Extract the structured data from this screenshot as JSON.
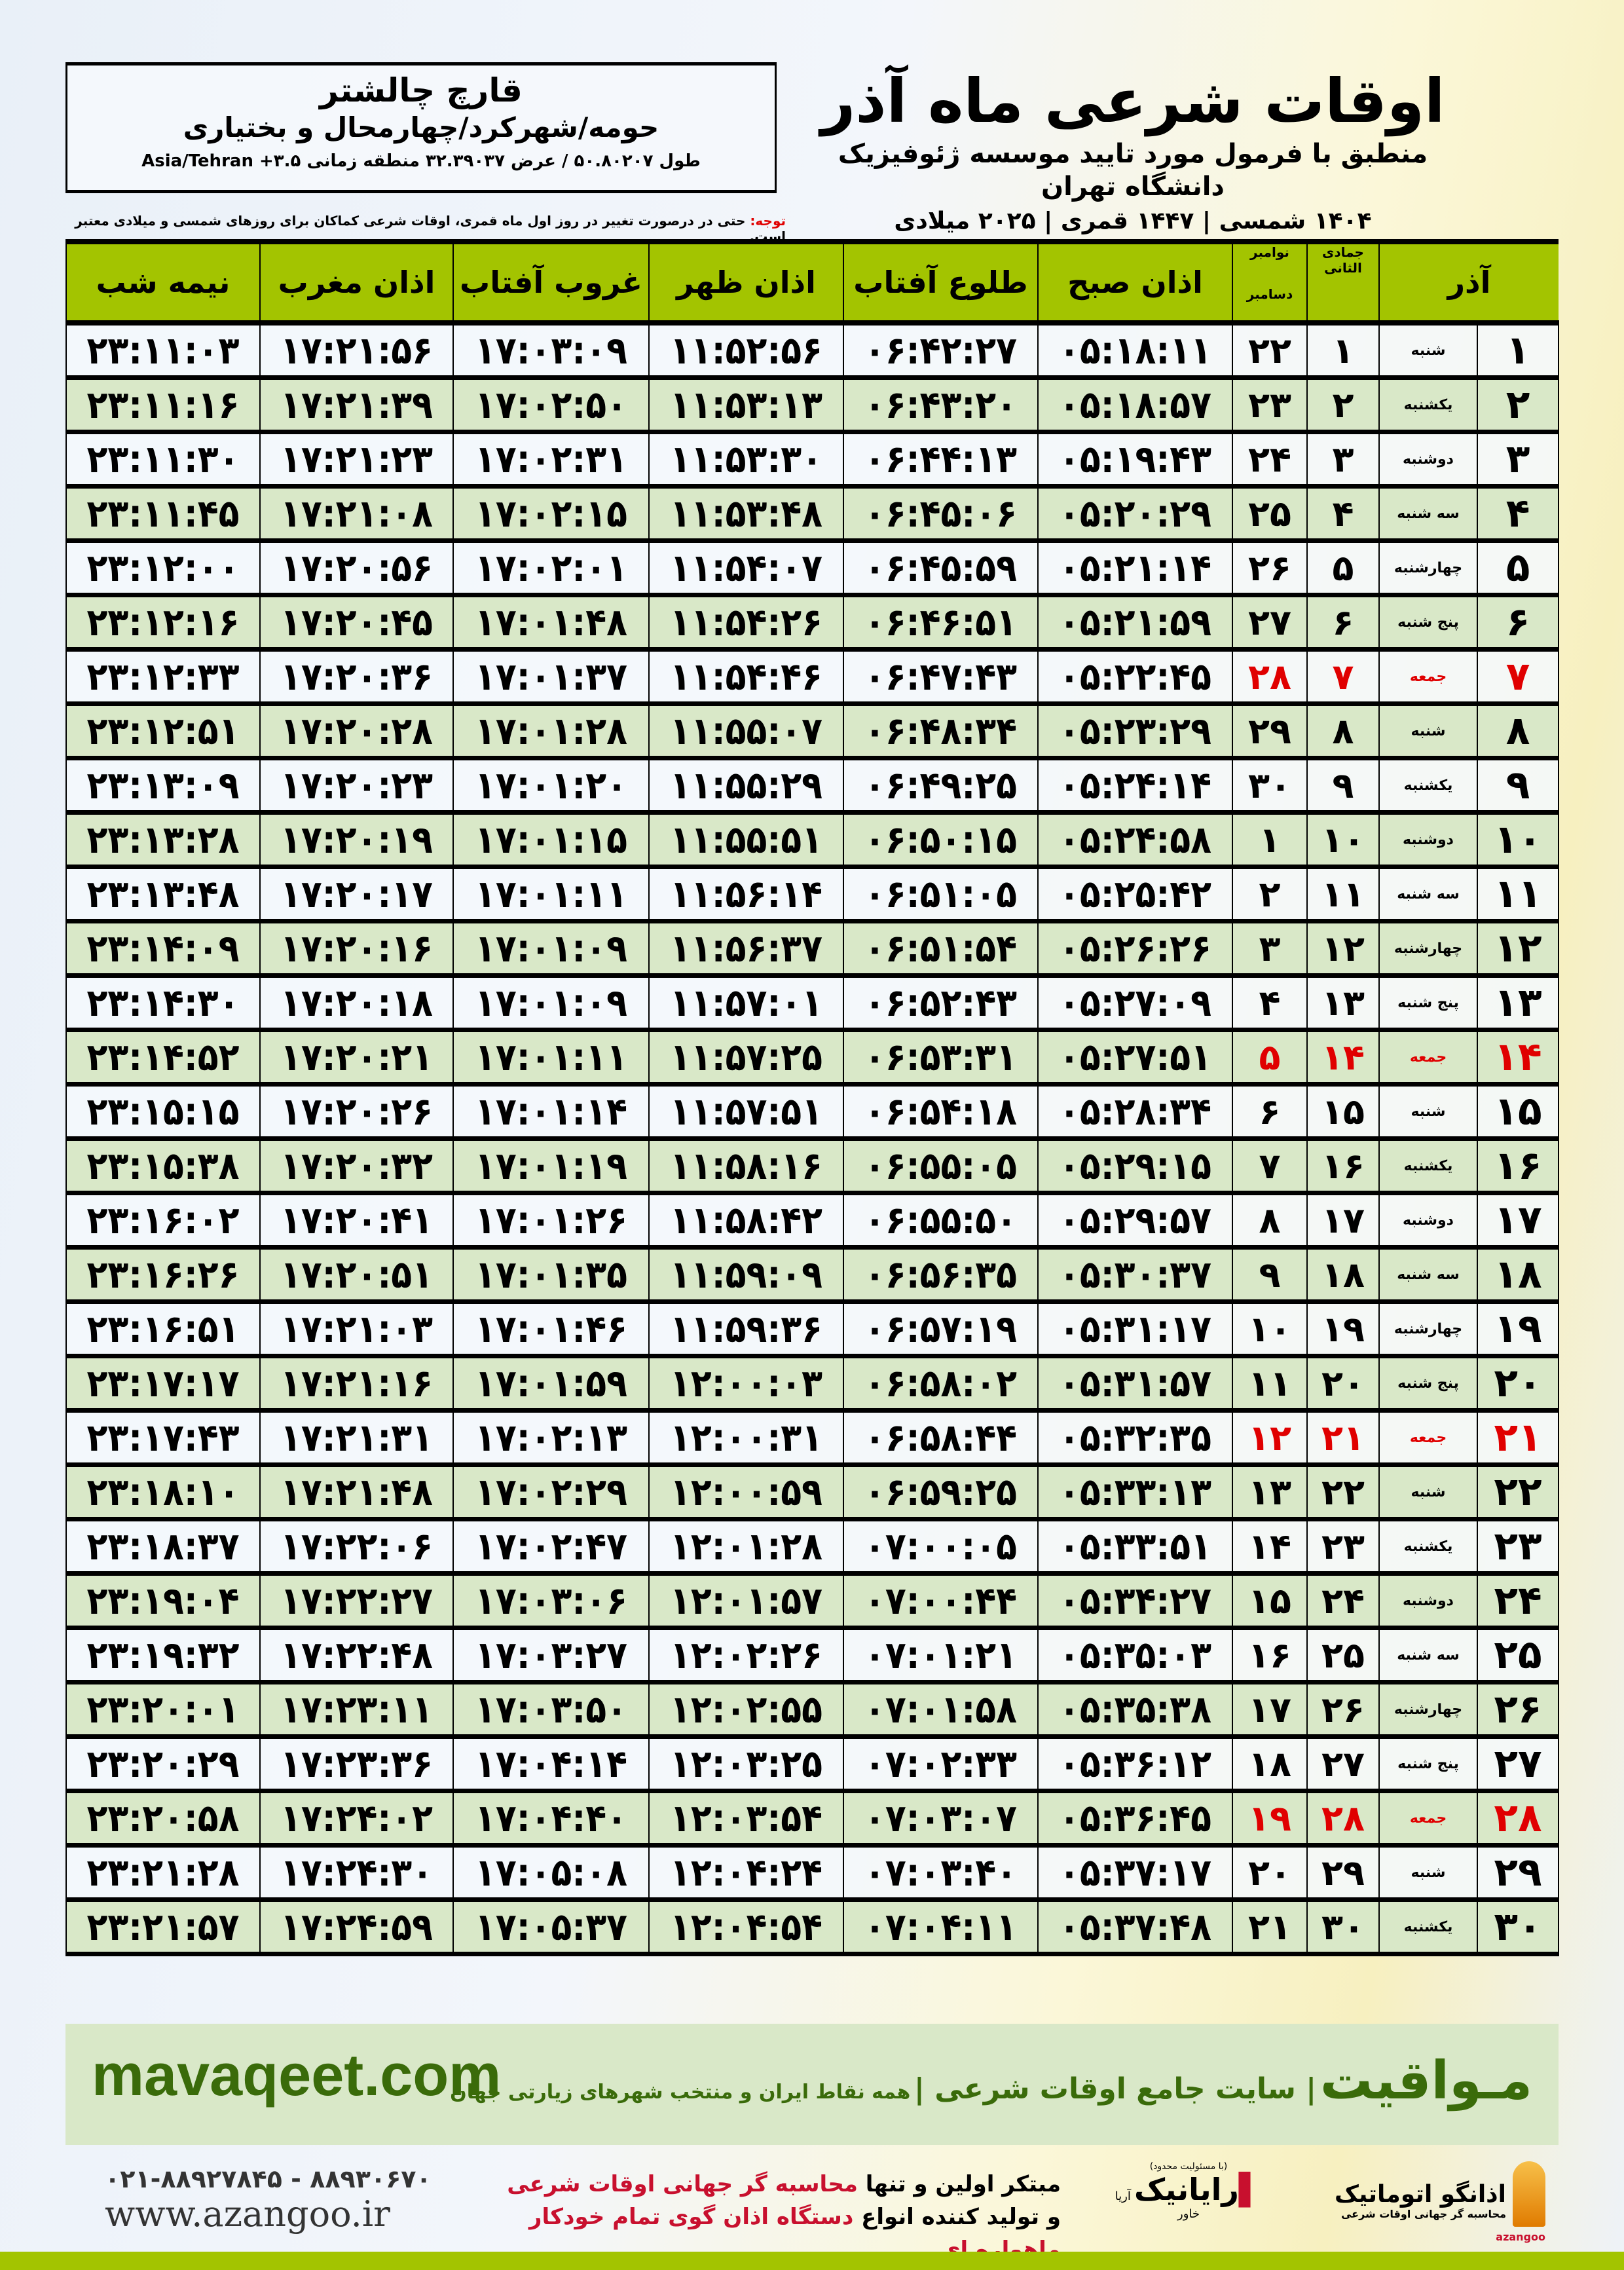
{
  "location": {
    "name": "قارچ چالشتر",
    "region": "حومه/شهرکرد/چهارمحال و بختیاری",
    "coords": "طول ۵۰.۸۰۲۰۷ / عرض ۳۲.۳۹۰۳۷ منطقه زمانی ۳.۵+ Asia/Tehran"
  },
  "header": {
    "title": "اوقات شرعی ماه آذر",
    "subtitle": "منطبق با فرمول مورد تایید موسسه ژئوفیزیک دانشگاه تهران",
    "year": "۱۴۰۴ شمسی | ۱۴۴۷ قمری | ۲۰۲۵ میلادی"
  },
  "note": {
    "label": "توجه:",
    "text": " حتی در درصورت تغییر در روز اول ماه قمری، اوقات شرعی کماکان برای روزهای شمسی و میلادی معتبر است."
  },
  "table": {
    "columns": {
      "month": "آذر",
      "hijri": "جمادی الثانی",
      "greg_top": "نوامبر",
      "greg_bottom": "دسامبر",
      "fajr": "اذان صبح",
      "sunrise": "طلوع آفتاب",
      "dhuhr": "اذان ظهر",
      "sunset": "غروب آفتاب",
      "maghrib": "اذان مغرب",
      "midnight": "نیمه شب"
    },
    "friday_color": "#e00000",
    "rows": [
      [
        "۱",
        "شنبه",
        "۱",
        "۲۲",
        "۰۵:۱۸:۱۱",
        "۰۶:۴۲:۲۷",
        "۱۱:۵۲:۵۶",
        "۱۷:۰۳:۰۹",
        "۱۷:۲۱:۵۶",
        "۲۳:۱۱:۰۳"
      ],
      [
        "۲",
        "یکشنبه",
        "۲",
        "۲۳",
        "۰۵:۱۸:۵۷",
        "۰۶:۴۳:۲۰",
        "۱۱:۵۳:۱۳",
        "۱۷:۰۲:۵۰",
        "۱۷:۲۱:۳۹",
        "۲۳:۱۱:۱۶"
      ],
      [
        "۳",
        "دوشنبه",
        "۳",
        "۲۴",
        "۰۵:۱۹:۴۳",
        "۰۶:۴۴:۱۳",
        "۱۱:۵۳:۳۰",
        "۱۷:۰۲:۳۱",
        "۱۷:۲۱:۲۳",
        "۲۳:۱۱:۳۰"
      ],
      [
        "۴",
        "سه شنبه",
        "۴",
        "۲۵",
        "۰۵:۲۰:۲۹",
        "۰۶:۴۵:۰۶",
        "۱۱:۵۳:۴۸",
        "۱۷:۰۲:۱۵",
        "۱۷:۲۱:۰۸",
        "۲۳:۱۱:۴۵"
      ],
      [
        "۵",
        "چهارشنبه",
        "۵",
        "۲۶",
        "۰۵:۲۱:۱۴",
        "۰۶:۴۵:۵۹",
        "۱۱:۵۴:۰۷",
        "۱۷:۰۲:۰۱",
        "۱۷:۲۰:۵۶",
        "۲۳:۱۲:۰۰"
      ],
      [
        "۶",
        "پنج شنبه",
        "۶",
        "۲۷",
        "۰۵:۲۱:۵۹",
        "۰۶:۴۶:۵۱",
        "۱۱:۵۴:۲۶",
        "۱۷:۰۱:۴۸",
        "۱۷:۲۰:۴۵",
        "۲۳:۱۲:۱۶"
      ],
      [
        "۷",
        "جمعه",
        "۷",
        "۲۸",
        "۰۵:۲۲:۴۵",
        "۰۶:۴۷:۴۳",
        "۱۱:۵۴:۴۶",
        "۱۷:۰۱:۳۷",
        "۱۷:۲۰:۳۶",
        "۲۳:۱۲:۳۳"
      ],
      [
        "۸",
        "شنبه",
        "۸",
        "۲۹",
        "۰۵:۲۳:۲۹",
        "۰۶:۴۸:۳۴",
        "۱۱:۵۵:۰۷",
        "۱۷:۰۱:۲۸",
        "۱۷:۲۰:۲۸",
        "۲۳:۱۲:۵۱"
      ],
      [
        "۹",
        "یکشنبه",
        "۹",
        "۳۰",
        "۰۵:۲۴:۱۴",
        "۰۶:۴۹:۲۵",
        "۱۱:۵۵:۲۹",
        "۱۷:۰۱:۲۰",
        "۱۷:۲۰:۲۳",
        "۲۳:۱۳:۰۹"
      ],
      [
        "۱۰",
        "دوشنبه",
        "۱۰",
        "۱",
        "۰۵:۲۴:۵۸",
        "۰۶:۵۰:۱۵",
        "۱۱:۵۵:۵۱",
        "۱۷:۰۱:۱۵",
        "۱۷:۲۰:۱۹",
        "۲۳:۱۳:۲۸"
      ],
      [
        "۱۱",
        "سه شنبه",
        "۱۱",
        "۲",
        "۰۵:۲۵:۴۲",
        "۰۶:۵۱:۰۵",
        "۱۱:۵۶:۱۴",
        "۱۷:۰۱:۱۱",
        "۱۷:۲۰:۱۷",
        "۲۳:۱۳:۴۸"
      ],
      [
        "۱۲",
        "چهارشنبه",
        "۱۲",
        "۳",
        "۰۵:۲۶:۲۶",
        "۰۶:۵۱:۵۴",
        "۱۱:۵۶:۳۷",
        "۱۷:۰۱:۰۹",
        "۱۷:۲۰:۱۶",
        "۲۳:۱۴:۰۹"
      ],
      [
        "۱۳",
        "پنج شنبه",
        "۱۳",
        "۴",
        "۰۵:۲۷:۰۹",
        "۰۶:۵۲:۴۳",
        "۱۱:۵۷:۰۱",
        "۱۷:۰۱:۰۹",
        "۱۷:۲۰:۱۸",
        "۲۳:۱۴:۳۰"
      ],
      [
        "۱۴",
        "جمعه",
        "۱۴",
        "۵",
        "۰۵:۲۷:۵۱",
        "۰۶:۵۳:۳۱",
        "۱۱:۵۷:۲۵",
        "۱۷:۰۱:۱۱",
        "۱۷:۲۰:۲۱",
        "۲۳:۱۴:۵۲"
      ],
      [
        "۱۵",
        "شنبه",
        "۱۵",
        "۶",
        "۰۵:۲۸:۳۴",
        "۰۶:۵۴:۱۸",
        "۱۱:۵۷:۵۱",
        "۱۷:۰۱:۱۴",
        "۱۷:۲۰:۲۶",
        "۲۳:۱۵:۱۵"
      ],
      [
        "۱۶",
        "یکشنبه",
        "۱۶",
        "۷",
        "۰۵:۲۹:۱۵",
        "۰۶:۵۵:۰۵",
        "۱۱:۵۸:۱۶",
        "۱۷:۰۱:۱۹",
        "۱۷:۲۰:۳۲",
        "۲۳:۱۵:۳۸"
      ],
      [
        "۱۷",
        "دوشنبه",
        "۱۷",
        "۸",
        "۰۵:۲۹:۵۷",
        "۰۶:۵۵:۵۰",
        "۱۱:۵۸:۴۲",
        "۱۷:۰۱:۲۶",
        "۱۷:۲۰:۴۱",
        "۲۳:۱۶:۰۲"
      ],
      [
        "۱۸",
        "سه شنبه",
        "۱۸",
        "۹",
        "۰۵:۳۰:۳۷",
        "۰۶:۵۶:۳۵",
        "۱۱:۵۹:۰۹",
        "۱۷:۰۱:۳۵",
        "۱۷:۲۰:۵۱",
        "۲۳:۱۶:۲۶"
      ],
      [
        "۱۹",
        "چهارشنبه",
        "۱۹",
        "۱۰",
        "۰۵:۳۱:۱۷",
        "۰۶:۵۷:۱۹",
        "۱۱:۵۹:۳۶",
        "۱۷:۰۱:۴۶",
        "۱۷:۲۱:۰۳",
        "۲۳:۱۶:۵۱"
      ],
      [
        "۲۰",
        "پنج شنبه",
        "۲۰",
        "۱۱",
        "۰۵:۳۱:۵۷",
        "۰۶:۵۸:۰۲",
        "۱۲:۰۰:۰۳",
        "۱۷:۰۱:۵۹",
        "۱۷:۲۱:۱۶",
        "۲۳:۱۷:۱۷"
      ],
      [
        "۲۱",
        "جمعه",
        "۲۱",
        "۱۲",
        "۰۵:۳۲:۳۵",
        "۰۶:۵۸:۴۴",
        "۱۲:۰۰:۳۱",
        "۱۷:۰۲:۱۳",
        "۱۷:۲۱:۳۱",
        "۲۳:۱۷:۴۳"
      ],
      [
        "۲۲",
        "شنبه",
        "۲۲",
        "۱۳",
        "۰۵:۳۳:۱۳",
        "۰۶:۵۹:۲۵",
        "۱۲:۰۰:۵۹",
        "۱۷:۰۲:۲۹",
        "۱۷:۲۱:۴۸",
        "۲۳:۱۸:۱۰"
      ],
      [
        "۲۳",
        "یکشنبه",
        "۲۳",
        "۱۴",
        "۰۵:۳۳:۵۱",
        "۰۷:۰۰:۰۵",
        "۱۲:۰۱:۲۸",
        "۱۷:۰۲:۴۷",
        "۱۷:۲۲:۰۶",
        "۲۳:۱۸:۳۷"
      ],
      [
        "۲۴",
        "دوشنبه",
        "۲۴",
        "۱۵",
        "۰۵:۳۴:۲۷",
        "۰۷:۰۰:۴۴",
        "۱۲:۰۱:۵۷",
        "۱۷:۰۳:۰۶",
        "۱۷:۲۲:۲۷",
        "۲۳:۱۹:۰۴"
      ],
      [
        "۲۵",
        "سه شنبه",
        "۲۵",
        "۱۶",
        "۰۵:۳۵:۰۳",
        "۰۷:۰۱:۲۱",
        "۱۲:۰۲:۲۶",
        "۱۷:۰۳:۲۷",
        "۱۷:۲۲:۴۸",
        "۲۳:۱۹:۳۲"
      ],
      [
        "۲۶",
        "چهارشنبه",
        "۲۶",
        "۱۷",
        "۰۵:۳۵:۳۸",
        "۰۷:۰۱:۵۸",
        "۱۲:۰۲:۵۵",
        "۱۷:۰۳:۵۰",
        "۱۷:۲۳:۱۱",
        "۲۳:۲۰:۰۱"
      ],
      [
        "۲۷",
        "پنج شنبه",
        "۲۷",
        "۱۸",
        "۰۵:۳۶:۱۲",
        "۰۷:۰۲:۳۳",
        "۱۲:۰۳:۲۵",
        "۱۷:۰۴:۱۴",
        "۱۷:۲۳:۳۶",
        "۲۳:۲۰:۲۹"
      ],
      [
        "۲۸",
        "جمعه",
        "۲۸",
        "۱۹",
        "۰۵:۳۶:۴۵",
        "۰۷:۰۳:۰۷",
        "۱۲:۰۳:۵۴",
        "۱۷:۰۴:۴۰",
        "۱۷:۲۴:۰۲",
        "۲۳:۲۰:۵۸"
      ],
      [
        "۲۹",
        "شنبه",
        "۲۹",
        "۲۰",
        "۰۵:۳۷:۱۷",
        "۰۷:۰۳:۴۰",
        "۱۲:۰۴:۲۴",
        "۱۷:۰۵:۰۸",
        "۱۷:۲۴:۳۰",
        "۲۳:۲۱:۲۸"
      ],
      [
        "۳۰",
        "یکشنبه",
        "۳۰",
        "۲۱",
        "۰۵:۳۷:۴۸",
        "۰۷:۰۴:۱۱",
        "۱۲:۰۴:۵۴",
        "۱۷:۰۵:۳۷",
        "۱۷:۲۴:۵۹",
        "۲۳:۲۱:۵۷"
      ]
    ]
  },
  "footer": {
    "site": "mavaqeet.com",
    "brand": "مـواقیت",
    "tagline": "| سایت جامع اوقات شرعی |",
    "tagline2": "همه نقاط ایران و منتخب شهرهای زیارتی جهان",
    "phone": "۰۲۱-۸۸۹۲۷۸۴۵ - ۸۸۹۳۰۶۷۰",
    "web": "www.azangoo.ir",
    "slogan1_a": "مبتکر اولین و تنها ",
    "slogan1_b": "محاسبه گر جهانی اوقات شرعی",
    "slogan2_a": "و تولید کننده انواع ",
    "slogan2_b": "دستگاه اذان گوی تمام خودکار ماهواره ای",
    "logo1": "رایانیک",
    "logo1_sub": "آریا خاور",
    "logo1_note": "(با مسئولیت محدود)",
    "logo2": "اذانگو اتوماتیک",
    "logo2_sub": "محاسبه گر جهانی اوقات شرعی",
    "logo2_en": "azangoo",
    "accent": "#a3c400",
    "brand_color": "#3a6b0a"
  }
}
